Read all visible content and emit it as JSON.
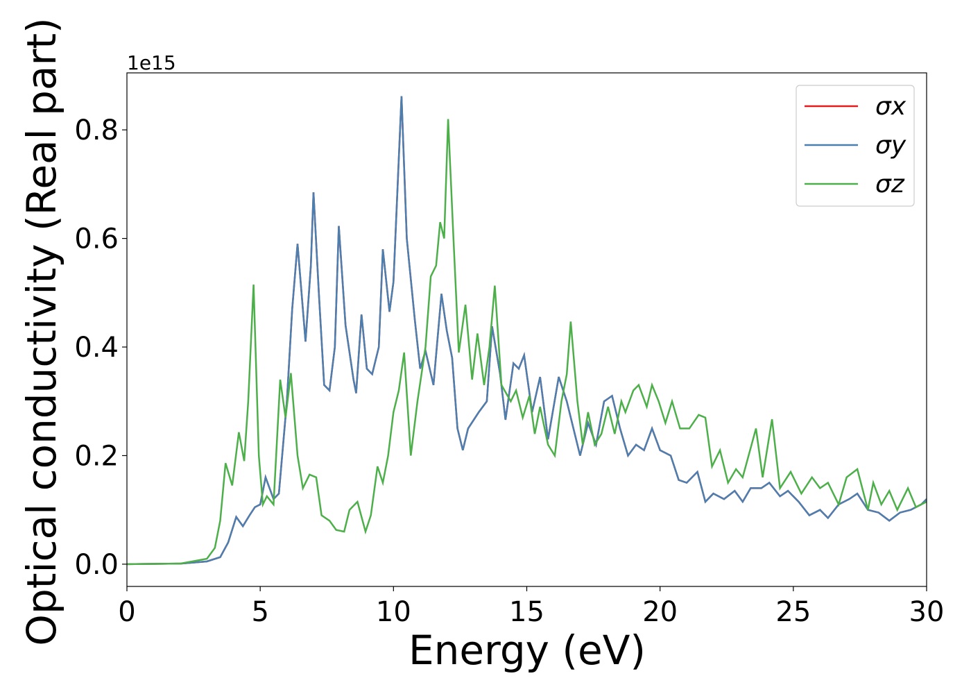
{
  "chart_data": {
    "type": "line",
    "xlabel": "Energy (eV)",
    "ylabel": "Optical conductivity (Real part)",
    "offset_text": "1e15",
    "xlim": [
      0,
      30
    ],
    "ylim": [
      -0.041,
      0.905
    ],
    "xticks": [
      0,
      5,
      10,
      15,
      20,
      25,
      30
    ],
    "yticks": [
      {
        "value": 0,
        "label": "0.0"
      },
      0.2,
      0.4,
      0.6,
      0.8
    ],
    "legend": "upper right",
    "series": [
      {
        "name": "σx",
        "color": "#e41a1c",
        "x": [
          0,
          2,
          3,
          3.5,
          3.8,
          4.1,
          4.35,
          4.6,
          4.8,
          5,
          5.2,
          5.5,
          5.7,
          6,
          6.2,
          6.4,
          6.7,
          6.9,
          7,
          7.2,
          7.4,
          7.6,
          7.8,
          7.95,
          8.2,
          8.5,
          8.6,
          8.8,
          9,
          9.2,
          9.45,
          9.6,
          9.85,
          10,
          10.3,
          10.5,
          10.8,
          11,
          11.2,
          11.5,
          11.8,
          12,
          12.2,
          12.4,
          12.6,
          12.8,
          13.2,
          13.5,
          13.7,
          14,
          14.2,
          14.5,
          14.7,
          14.9,
          15.2,
          15.5,
          15.8,
          16.2,
          16.5,
          16.8,
          17,
          17.3,
          17.6,
          17.9,
          18.2,
          18.5,
          18.8,
          19.1,
          19.4,
          19.7,
          20,
          20.4,
          20.7,
          21,
          21.4,
          21.7,
          22,
          22.4,
          22.8,
          23.1,
          23.4,
          23.8,
          24.1,
          24.5,
          24.8,
          25.2,
          25.6,
          26,
          26.3,
          26.7,
          27.1,
          27.4,
          27.8,
          28.2,
          28.6,
          29,
          29.4,
          29.8,
          30
        ],
        "values": [
          0,
          0.001,
          0.005,
          0.013,
          0.04,
          0.087,
          0.07,
          0.09,
          0.105,
          0.11,
          0.16,
          0.12,
          0.13,
          0.3,
          0.47,
          0.59,
          0.41,
          0.55,
          0.685,
          0.5,
          0.33,
          0.32,
          0.4,
          0.623,
          0.44,
          0.34,
          0.315,
          0.46,
          0.36,
          0.35,
          0.4,
          0.58,
          0.465,
          0.52,
          0.862,
          0.6,
          0.45,
          0.36,
          0.393,
          0.33,
          0.498,
          0.43,
          0.38,
          0.25,
          0.21,
          0.25,
          0.28,
          0.3,
          0.438,
          0.35,
          0.266,
          0.37,
          0.36,
          0.385,
          0.28,
          0.345,
          0.23,
          0.345,
          0.3,
          0.24,
          0.2,
          0.26,
          0.22,
          0.3,
          0.31,
          0.25,
          0.2,
          0.22,
          0.21,
          0.25,
          0.21,
          0.2,
          0.155,
          0.15,
          0.17,
          0.115,
          0.13,
          0.12,
          0.135,
          0.115,
          0.14,
          0.14,
          0.15,
          0.125,
          0.135,
          0.115,
          0.09,
          0.1,
          0.085,
          0.11,
          0.12,
          0.13,
          0.1,
          0.095,
          0.08,
          0.095,
          0.1,
          0.11,
          0.12
        ]
      },
      {
        "name": "σy",
        "color": "#4a7fb0",
        "x": [
          0,
          2,
          3,
          3.5,
          3.8,
          4.1,
          4.35,
          4.6,
          4.8,
          5,
          5.2,
          5.5,
          5.7,
          6,
          6.2,
          6.4,
          6.7,
          6.9,
          7,
          7.2,
          7.4,
          7.6,
          7.8,
          7.95,
          8.2,
          8.5,
          8.6,
          8.8,
          9,
          9.2,
          9.45,
          9.6,
          9.85,
          10,
          10.3,
          10.5,
          10.8,
          11,
          11.2,
          11.5,
          11.8,
          12,
          12.2,
          12.4,
          12.6,
          12.8,
          13.2,
          13.5,
          13.7,
          14,
          14.2,
          14.5,
          14.7,
          14.9,
          15.2,
          15.5,
          15.8,
          16.2,
          16.5,
          16.8,
          17,
          17.3,
          17.6,
          17.9,
          18.2,
          18.5,
          18.8,
          19.1,
          19.4,
          19.7,
          20,
          20.4,
          20.7,
          21,
          21.4,
          21.7,
          22,
          22.4,
          22.8,
          23.1,
          23.4,
          23.8,
          24.1,
          24.5,
          24.8,
          25.2,
          25.6,
          26,
          26.3,
          26.7,
          27.1,
          27.4,
          27.8,
          28.2,
          28.6,
          29,
          29.4,
          29.8,
          30
        ],
        "values": [
          0,
          0.001,
          0.005,
          0.013,
          0.04,
          0.087,
          0.07,
          0.09,
          0.105,
          0.11,
          0.16,
          0.12,
          0.13,
          0.3,
          0.47,
          0.59,
          0.41,
          0.55,
          0.685,
          0.5,
          0.33,
          0.32,
          0.4,
          0.623,
          0.44,
          0.34,
          0.315,
          0.46,
          0.36,
          0.35,
          0.4,
          0.58,
          0.465,
          0.52,
          0.862,
          0.6,
          0.45,
          0.36,
          0.393,
          0.33,
          0.498,
          0.43,
          0.38,
          0.25,
          0.21,
          0.25,
          0.28,
          0.3,
          0.438,
          0.35,
          0.266,
          0.37,
          0.36,
          0.385,
          0.28,
          0.345,
          0.23,
          0.345,
          0.3,
          0.24,
          0.2,
          0.26,
          0.22,
          0.3,
          0.31,
          0.25,
          0.2,
          0.22,
          0.21,
          0.25,
          0.21,
          0.2,
          0.155,
          0.15,
          0.17,
          0.115,
          0.13,
          0.12,
          0.135,
          0.115,
          0.14,
          0.14,
          0.15,
          0.125,
          0.135,
          0.115,
          0.09,
          0.1,
          0.085,
          0.11,
          0.12,
          0.13,
          0.1,
          0.095,
          0.08,
          0.095,
          0.1,
          0.11,
          0.12
        ]
      },
      {
        "name": "σz",
        "color": "#4daf4a",
        "x": [
          0,
          2,
          3,
          3.3,
          3.5,
          3.7,
          3.95,
          4.2,
          4.4,
          4.55,
          4.75,
          4.95,
          5.1,
          5.25,
          5.5,
          5.75,
          5.95,
          6.15,
          6.4,
          6.6,
          6.85,
          7.1,
          7.3,
          7.6,
          7.85,
          8.15,
          8.35,
          8.65,
          8.95,
          9.15,
          9.4,
          9.6,
          9.8,
          10,
          10.2,
          10.4,
          10.65,
          10.9,
          11.2,
          11.4,
          11.6,
          11.75,
          11.9,
          12.05,
          12.25,
          12.45,
          12.7,
          12.95,
          13.15,
          13.4,
          13.6,
          13.8,
          14.05,
          14.4,
          14.6,
          14.85,
          15.1,
          15.3,
          15.5,
          15.8,
          16.05,
          16.3,
          16.5,
          16.65,
          16.9,
          17.1,
          17.3,
          17.55,
          17.8,
          18.05,
          18.3,
          18.55,
          18.7,
          19,
          19.2,
          19.5,
          19.7,
          19.95,
          20.2,
          20.45,
          20.75,
          21.1,
          21.45,
          21.7,
          21.95,
          22.25,
          22.55,
          22.85,
          23.1,
          23.6,
          23.85,
          24.2,
          24.5,
          24.9,
          25.3,
          25.7,
          26,
          26.3,
          26.7,
          27,
          27.4,
          27.8,
          28,
          28.3,
          28.6,
          28.9,
          29.3,
          29.6,
          30
        ],
        "values": [
          0,
          0.001,
          0.01,
          0.03,
          0.08,
          0.186,
          0.145,
          0.243,
          0.19,
          0.3,
          0.515,
          0.2,
          0.11,
          0.125,
          0.11,
          0.34,
          0.27,
          0.352,
          0.2,
          0.14,
          0.165,
          0.16,
          0.09,
          0.08,
          0.063,
          0.06,
          0.1,
          0.115,
          0.06,
          0.09,
          0.18,
          0.15,
          0.2,
          0.28,
          0.32,
          0.39,
          0.2,
          0.3,
          0.4,
          0.53,
          0.55,
          0.63,
          0.6,
          0.82,
          0.6,
          0.39,
          0.478,
          0.34,
          0.425,
          0.33,
          0.4,
          0.513,
          0.33,
          0.3,
          0.32,
          0.27,
          0.31,
          0.24,
          0.29,
          0.22,
          0.2,
          0.3,
          0.35,
          0.447,
          0.3,
          0.22,
          0.28,
          0.22,
          0.24,
          0.29,
          0.24,
          0.3,
          0.28,
          0.32,
          0.33,
          0.29,
          0.33,
          0.3,
          0.26,
          0.3,
          0.25,
          0.25,
          0.275,
          0.27,
          0.18,
          0.21,
          0.15,
          0.175,
          0.16,
          0.25,
          0.16,
          0.267,
          0.14,
          0.17,
          0.13,
          0.16,
          0.14,
          0.15,
          0.11,
          0.16,
          0.175,
          0.1,
          0.15,
          0.11,
          0.135,
          0.1,
          0.14,
          0.105,
          0.115
        ]
      }
    ]
  }
}
